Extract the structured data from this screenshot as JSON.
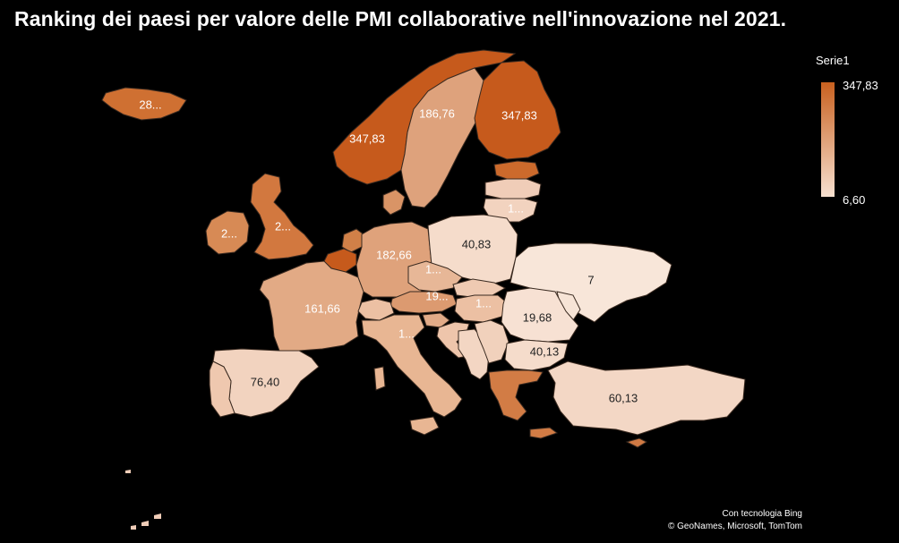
{
  "title": "Ranking dei paesi per valore delle PMI collaborative nell'innovazione nel 2021.",
  "legend": {
    "series_name": "Serie1",
    "max_label": "347,83",
    "min_label": "6,60",
    "color_high": "#c8601f",
    "color_low": "#f7e0d0"
  },
  "credits": {
    "line1": "Con tecnologia Bing",
    "line2": "© GeoNames, Microsoft, TomTom"
  },
  "regions": [
    {
      "id": "iceland",
      "label": "28...",
      "value": 280,
      "fill": "#cf7032"
    },
    {
      "id": "norway",
      "label": "347,83",
      "value": 347.83,
      "fill": "#c65a1c"
    },
    {
      "id": "sweden",
      "label": "186,76",
      "value": 186.76,
      "fill": "#dea27c"
    },
    {
      "id": "finland",
      "label": "347,83",
      "value": 347.83,
      "fill": "#c65a1c"
    },
    {
      "id": "estonia",
      "label": "",
      "value": null,
      "fill": "#cc6a2c"
    },
    {
      "id": "latvia",
      "label": "",
      "value": null,
      "fill": "#f0cdb8"
    },
    {
      "id": "lithuania",
      "label": "1...",
      "value": null,
      "fill": "#f2d3bf"
    },
    {
      "id": "ireland",
      "label": "2...",
      "value": 200,
      "fill": "#d78a55"
    },
    {
      "id": "uk",
      "label": "2...",
      "value": 200,
      "fill": "#d2783f"
    },
    {
      "id": "denmark",
      "label": "",
      "value": null,
      "fill": "#d99466"
    },
    {
      "id": "netherlands",
      "label": "",
      "value": null,
      "fill": "#d08048"
    },
    {
      "id": "belgium",
      "label": "",
      "value": null,
      "fill": "#c65a1c"
    },
    {
      "id": "germany",
      "label": "182,66",
      "value": 182.66,
      "fill": "#dfa27b"
    },
    {
      "id": "poland",
      "label": "40,83",
      "value": 40.83,
      "fill": "#f5dccb"
    },
    {
      "id": "czechia",
      "label": "1...",
      "value": null,
      "fill": "#e7b797"
    },
    {
      "id": "austria",
      "label": "19...",
      "value": 190,
      "fill": "#dc9a70"
    },
    {
      "id": "slovakia",
      "label": "",
      "value": null,
      "fill": "#efcab2"
    },
    {
      "id": "hungary",
      "label": "1...",
      "value": null,
      "fill": "#ecc0a3"
    },
    {
      "id": "france",
      "label": "161,66",
      "value": 161.66,
      "fill": "#e2aa85"
    },
    {
      "id": "switzerland",
      "label": "",
      "value": null,
      "fill": "#ecc0a3"
    },
    {
      "id": "italy",
      "label": "1...",
      "value": null,
      "fill": "#e8b693"
    },
    {
      "id": "slovenia",
      "label": "",
      "value": null,
      "fill": "#e2ab88"
    },
    {
      "id": "croatia",
      "label": "",
      "value": null,
      "fill": "#eec5ab"
    },
    {
      "id": "balkans",
      "label": "",
      "value": null,
      "fill": "#f3d6c3"
    },
    {
      "id": "serbia",
      "label": "",
      "value": null,
      "fill": "#f1d1bc"
    },
    {
      "id": "ukraine",
      "label": "7",
      "value": 7,
      "fill": "#f8e6d9"
    },
    {
      "id": "moldova",
      "label": "",
      "value": null,
      "fill": "#f7e4d6"
    },
    {
      "id": "romania",
      "label": "19,68",
      "value": 19.68,
      "fill": "#f7e1d3"
    },
    {
      "id": "bulgaria",
      "label": "40,13",
      "value": 40.13,
      "fill": "#f5dccb"
    },
    {
      "id": "greece",
      "label": "",
      "value": null,
      "fill": "#d27c45"
    },
    {
      "id": "spain",
      "label": "76,40",
      "value": 76.4,
      "fill": "#f2d3bf"
    },
    {
      "id": "portugal",
      "label": "",
      "value": null,
      "fill": "#efc8af"
    },
    {
      "id": "turkey",
      "label": "60,13",
      "value": 60.13,
      "fill": "#f3d7c5"
    },
    {
      "id": "cyprus",
      "label": "",
      "value": null,
      "fill": "#d07a44"
    }
  ]
}
